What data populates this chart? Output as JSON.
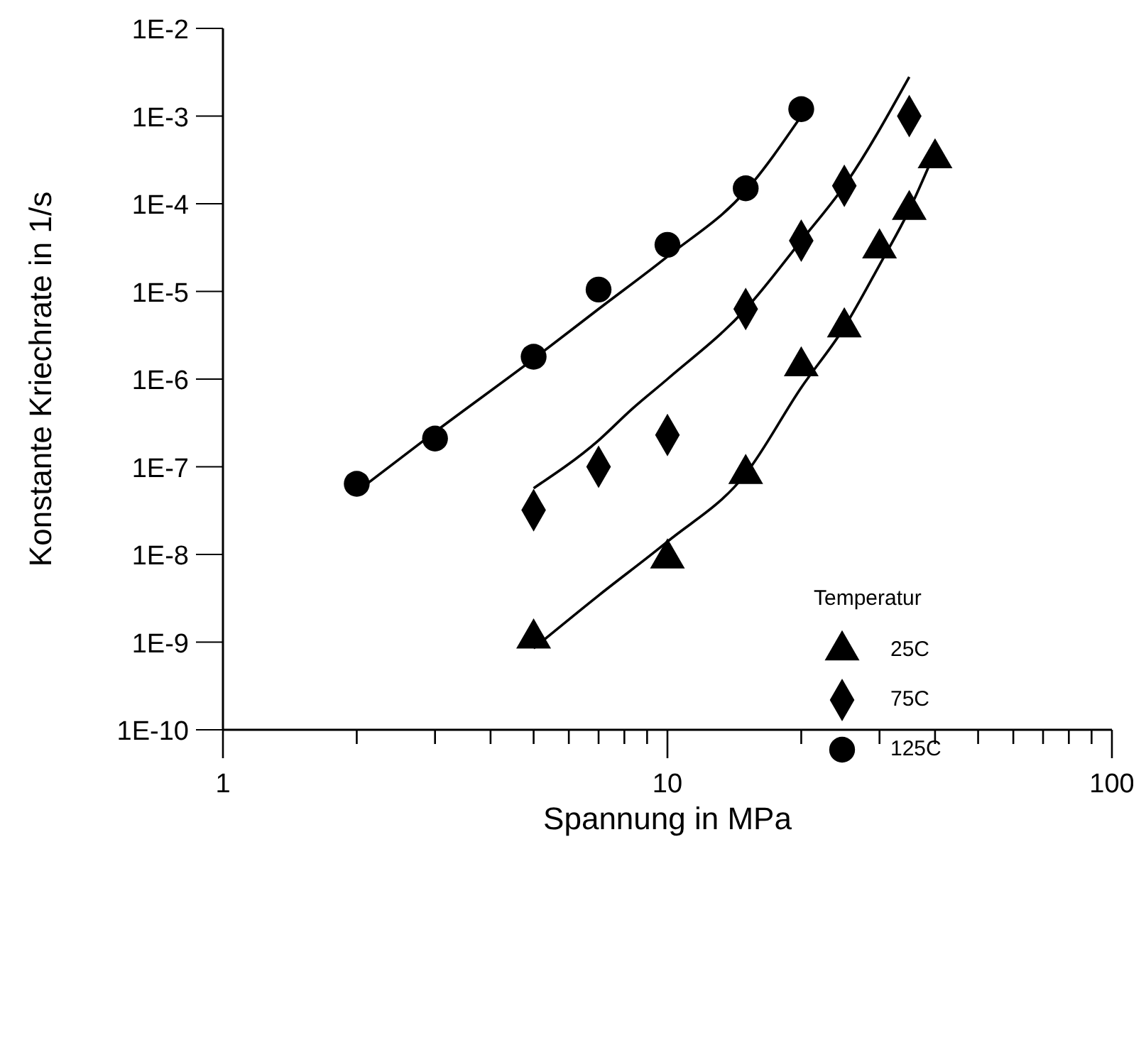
{
  "chart_data": {
    "type": "scatter",
    "xlabel": "Spannung in MPa",
    "ylabel": "Konstante Kriechrate in 1/s",
    "legend_title": "Temperatur",
    "legend": "bottom right",
    "log": "xy",
    "grid": false,
    "xlim": [
      1,
      100
    ],
    "xticks": [
      1,
      {
        "value": 2,
        "label": null
      },
      {
        "value": 3,
        "label": null
      },
      {
        "value": 4,
        "label": null
      },
      {
        "value": 5,
        "label": null
      },
      {
        "value": 6,
        "label": null
      },
      {
        "value": 7,
        "label": null
      },
      {
        "value": 8,
        "label": null
      },
      {
        "value": 9,
        "label": null
      },
      10,
      {
        "value": 20,
        "label": null
      },
      {
        "value": 30,
        "label": null
      },
      {
        "value": 40,
        "label": null
      },
      {
        "value": 50,
        "label": null
      },
      {
        "value": 60,
        "label": null
      },
      {
        "value": 70,
        "label": null
      },
      {
        "value": 80,
        "label": null
      },
      {
        "value": 90,
        "label": null
      },
      100
    ],
    "ylim": [
      1e-10,
      0.01
    ],
    "yticks": [
      {
        "value": 1e-10,
        "label": "1E-10"
      },
      {
        "value": 1e-09,
        "label": "1E-9"
      },
      {
        "value": 1e-08,
        "label": "1E-8"
      },
      {
        "value": 1e-07,
        "label": "1E-7"
      },
      {
        "value": 1e-06,
        "label": "1E-6"
      },
      {
        "value": 1e-05,
        "label": "1E-5"
      },
      {
        "value": 0.0001,
        "label": "1E-4"
      },
      {
        "value": 0.001,
        "label": "1E-3"
      },
      {
        "value": 0.01,
        "label": "1E-2"
      }
    ],
    "series": [
      {
        "name": "25C",
        "marker": "triangle",
        "color": "#000000",
        "x": [
          5,
          10,
          15,
          20,
          25,
          30,
          35,
          40
        ],
        "values": [
          1.1e-09,
          9e-09,
          8.3e-08,
          1.4e-06,
          3.9e-06,
          3.1e-05,
          8.5e-05,
          0.00033
        ]
      },
      {
        "name": "75C",
        "marker": "diamond",
        "color": "#000000",
        "x": [
          5,
          7,
          10,
          15,
          20,
          25,
          35
        ],
        "values": [
          3.2e-08,
          1e-07,
          2.3e-07,
          6.3e-06,
          3.8e-05,
          0.00016,
          0.001
        ]
      },
      {
        "name": "125C",
        "marker": "circle",
        "color": "#000000",
        "x": [
          2,
          3,
          5,
          7,
          10,
          15,
          20
        ],
        "values": [
          6.4e-08,
          2.1e-07,
          1.8e-06,
          1.05e-05,
          3.4e-05,
          0.00015,
          0.0012
        ]
      },
      {
        "type": "line",
        "marker": "none",
        "line_style": "solid",
        "color": "#000000",
        "x": [
          5,
          7,
          10,
          15,
          20,
          25,
          30,
          35,
          39
        ],
        "values": [
          8.5e-10,
          3.4e-09,
          1.4e-08,
          8.3e-08,
          8e-07,
          3.9e-06,
          2e-05,
          8.5e-05,
          0.00029
        ]
      },
      {
        "type": "line",
        "marker": "none",
        "line_style": "solid",
        "color": "#000000",
        "x": [
          5,
          7,
          8.3,
          10,
          15,
          20,
          25,
          35
        ],
        "values": [
          5.7e-08,
          2e-07,
          4.5e-07,
          1e-06,
          6.3e-06,
          3.8e-05,
          0.00016,
          0.0028
        ]
      },
      {
        "type": "line",
        "marker": "none",
        "line_style": "solid",
        "color": "#000000",
        "x": [
          2,
          3,
          5,
          7,
          10,
          15,
          20
        ],
        "values": [
          5.2e-08,
          2.5e-07,
          1.7e-06,
          6.3e-06,
          2.5e-05,
          0.00014,
          0.001
        ]
      }
    ]
  }
}
